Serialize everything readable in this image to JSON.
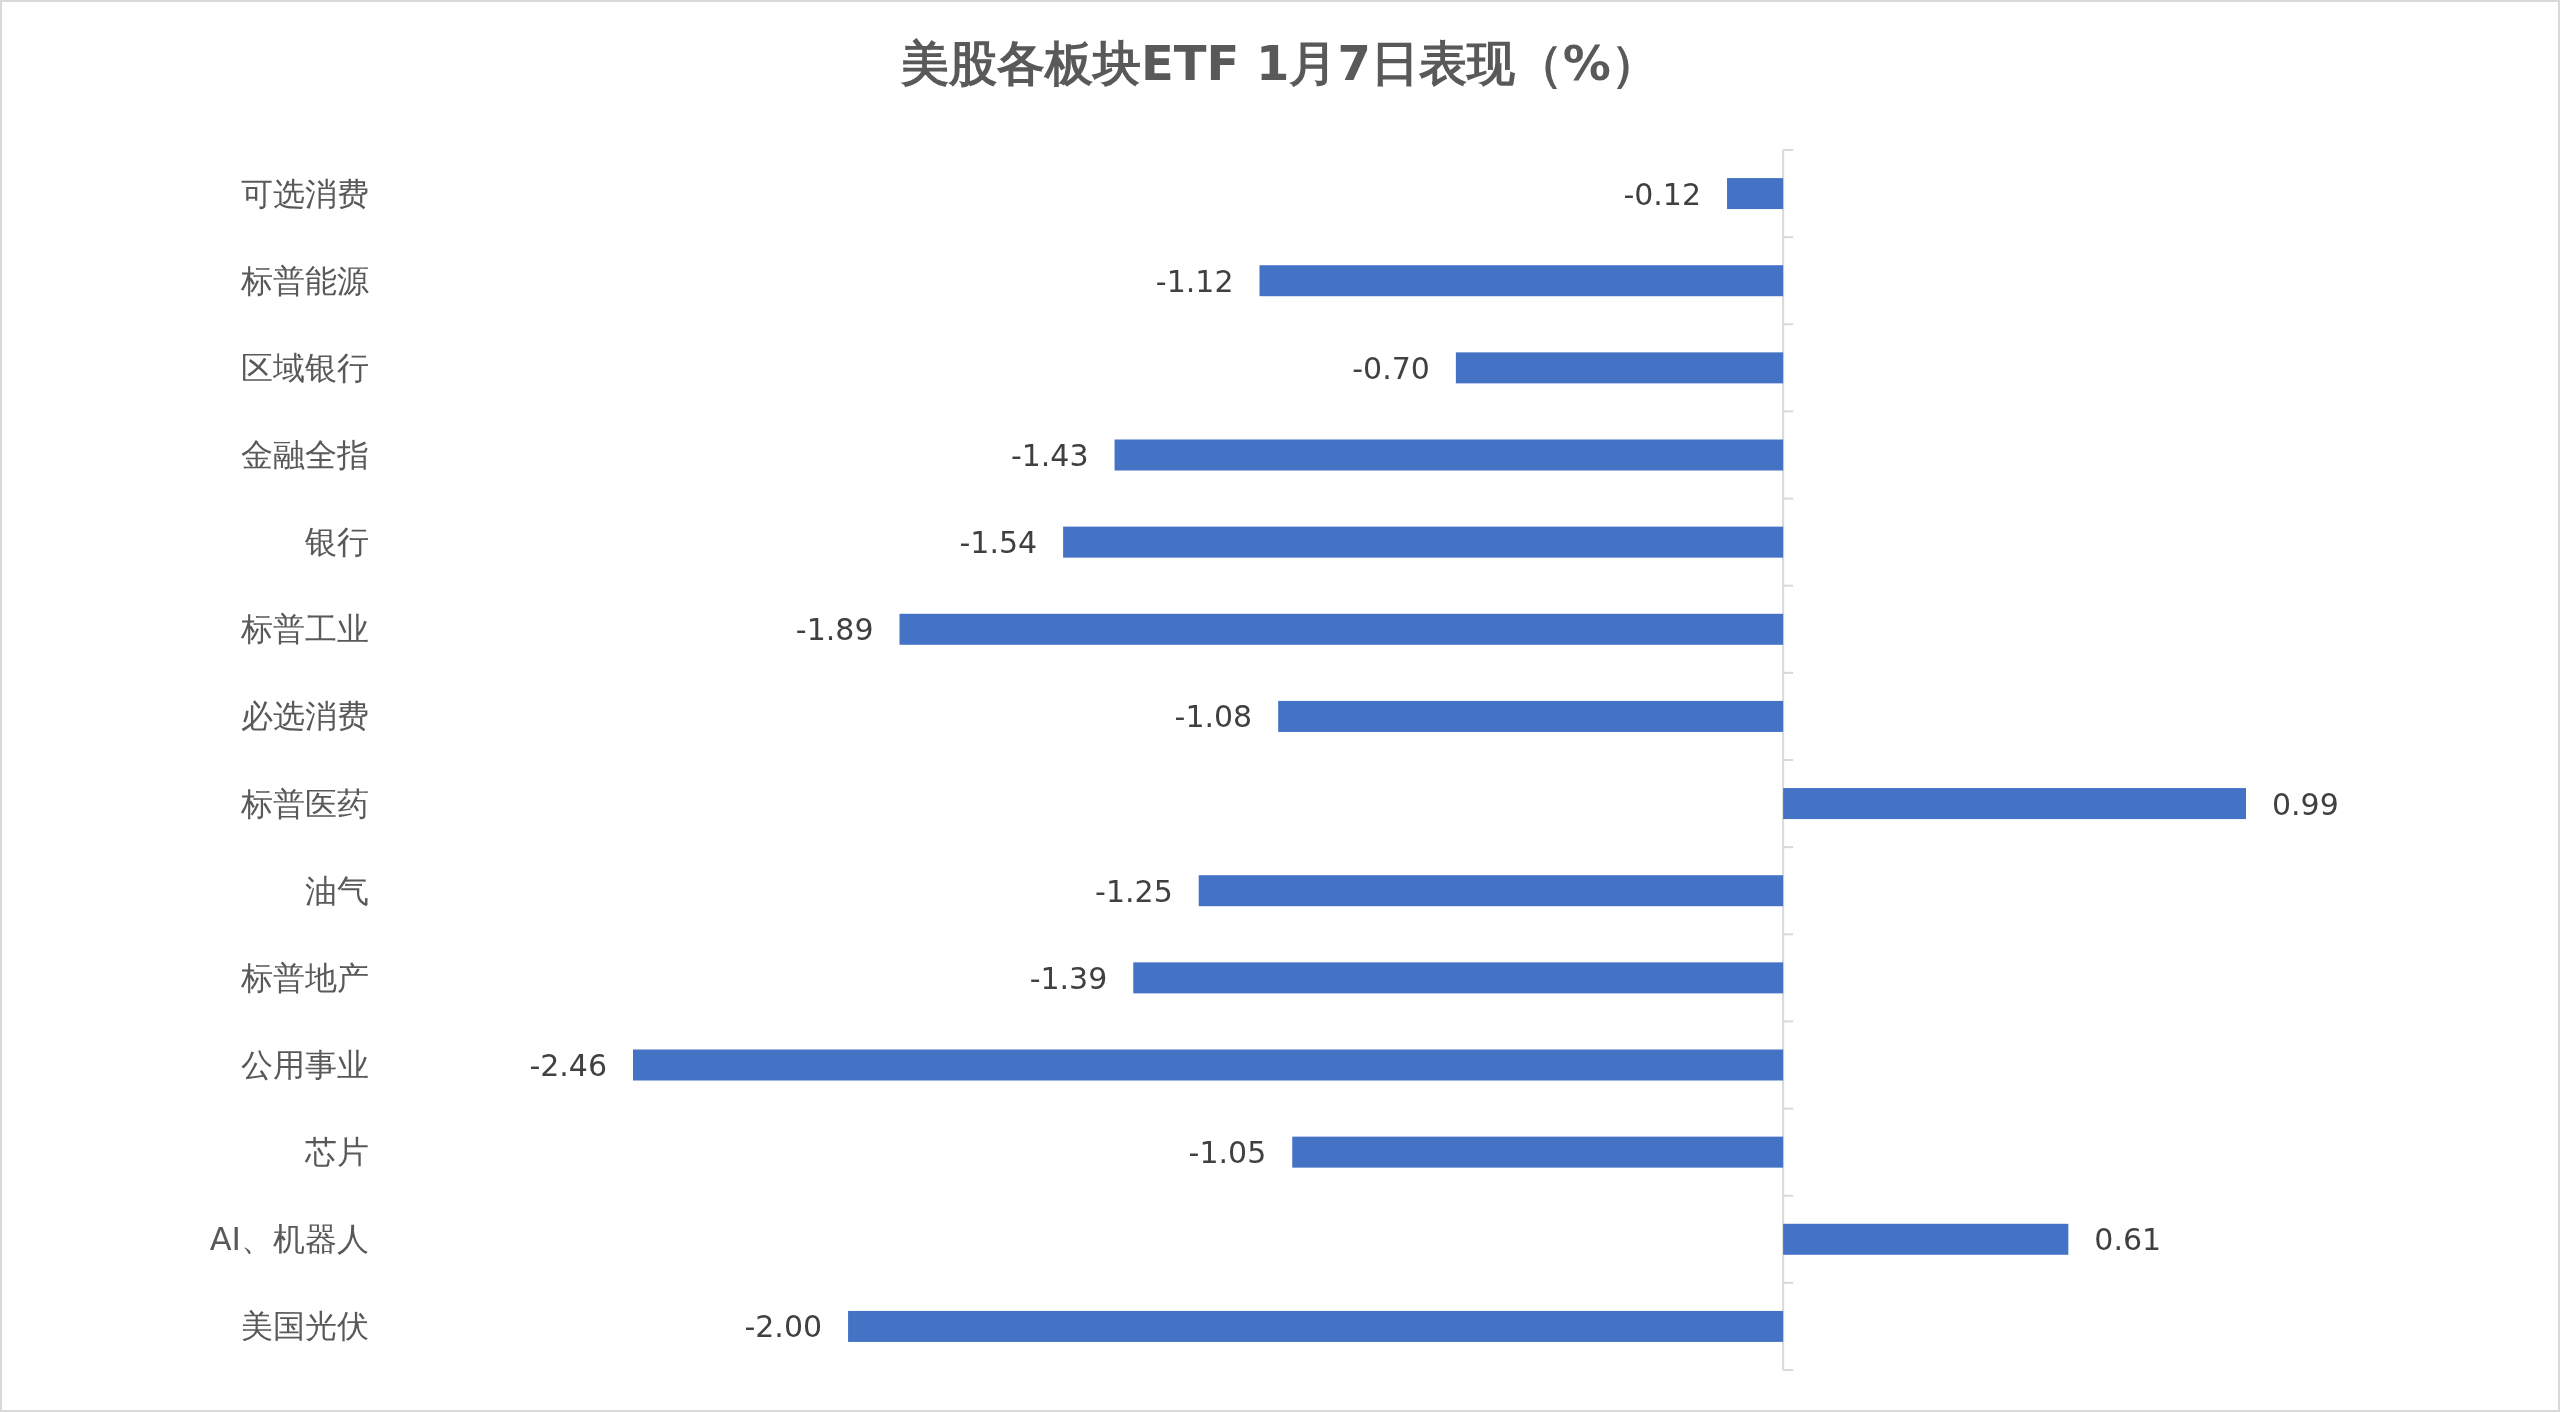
{
  "chart_data": {
    "type": "bar",
    "orientation": "horizontal",
    "title": "美股各板块ETF 1月7日表现（%）",
    "categories": [
      "可选消费",
      "标普能源",
      "区域银行",
      "金融全指",
      "银行",
      "标普工业",
      "必选消费",
      "标普医药",
      "油气",
      "标普地产",
      "公用事业",
      "芯片",
      "AI、机器人",
      "美国光伏"
    ],
    "values": [
      -0.12,
      -1.12,
      -0.7,
      -1.43,
      -1.54,
      -1.89,
      -1.08,
      0.99,
      -1.25,
      -1.39,
      -2.46,
      -1.05,
      0.61,
      -2.0
    ],
    "value_labels": [
      "-0.12",
      "-1.12",
      "-0.70",
      "-1.43",
      "-1.54",
      "-1.89",
      "-1.08",
      "0.99",
      "-1.25",
      "-1.39",
      "-2.46",
      "-1.05",
      "0.61",
      "-2.00"
    ],
    "color": "#4472c4",
    "tick_labels": "y"
  }
}
